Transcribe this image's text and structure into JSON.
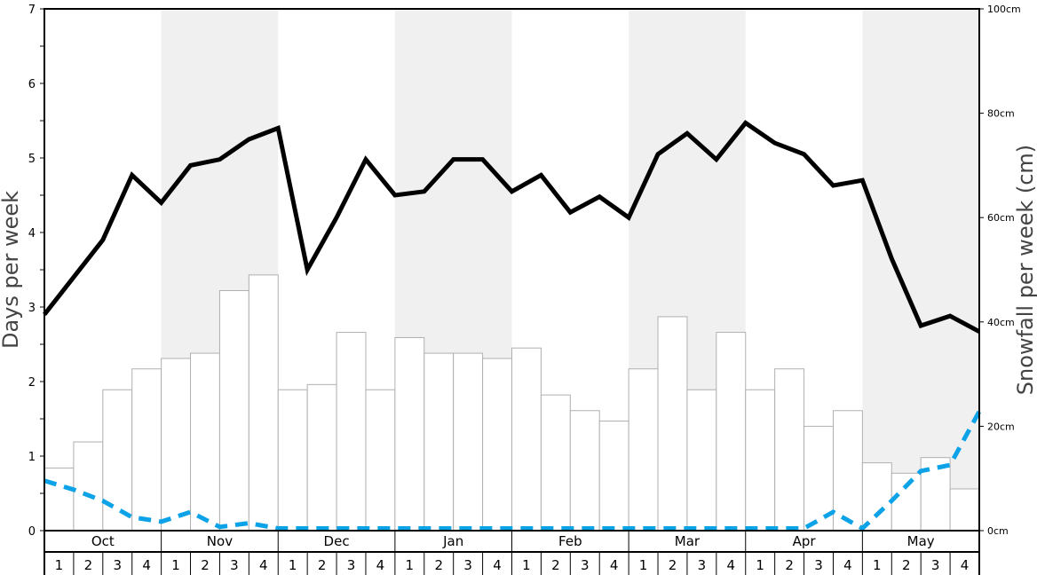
{
  "chart_data": {
    "type": "bar+line",
    "ylabel": "Days per week",
    "y2label": "Snowfall per week (cm)",
    "ylim": [
      0,
      7
    ],
    "y2lim": [
      0,
      100
    ],
    "yticks": [
      "0",
      "1",
      "2",
      "3",
      "4",
      "5",
      "6",
      "7"
    ],
    "y2ticks": [
      "0cm",
      "20cm",
      "40cm",
      "60cm",
      "80cm",
      "100cm"
    ],
    "months": [
      "Oct",
      "Nov",
      "Dec",
      "Jan",
      "Feb",
      "Mar",
      "Apr",
      "May"
    ],
    "weeks": [
      "1",
      "2",
      "3",
      "4"
    ],
    "shaded_months": [
      "Nov",
      "Jan",
      "Mar",
      "May"
    ],
    "snowfall_cm": [
      12,
      17,
      27,
      31,
      33,
      34,
      46,
      49,
      27,
      28,
      38,
      27,
      37,
      34,
      34,
      33,
      35,
      26,
      23,
      21,
      31,
      41,
      27,
      38,
      27,
      31,
      20,
      23,
      13,
      11,
      14,
      8
    ],
    "snow_days_line": [
      2.9,
      3.4,
      3.9,
      4.77,
      4.4,
      4.9,
      4.98,
      5.25,
      5.4,
      3.5,
      4.2,
      4.98,
      4.5,
      4.55,
      4.98,
      4.98,
      4.55,
      4.77,
      4.27,
      4.48,
      4.2,
      5.05,
      5.33,
      4.98,
      5.47,
      5.2,
      5.05,
      4.63,
      4.7,
      3.65,
      2.75,
      2.88,
      2.67
    ],
    "dashed_line": [
      0.67,
      0.55,
      0.4,
      0.18,
      0.12,
      0.25,
      0.05,
      0.1,
      0.03,
      0.03,
      0.03,
      0.03,
      0.03,
      0.03,
      0.03,
      0.03,
      0.03,
      0.03,
      0.03,
      0.03,
      0.03,
      0.03,
      0.03,
      0.03,
      0.03,
      0.03,
      0.03,
      0.25,
      0.03,
      0.4,
      0.8,
      0.88,
      1.6
    ],
    "colors": {
      "solid_line": "#000000",
      "dashed_line": "#0ba2e8",
      "bars": "#ffffff",
      "bar_stroke": "#b0b0b0",
      "shade": "#f0f0f0"
    },
    "grid": false
  }
}
